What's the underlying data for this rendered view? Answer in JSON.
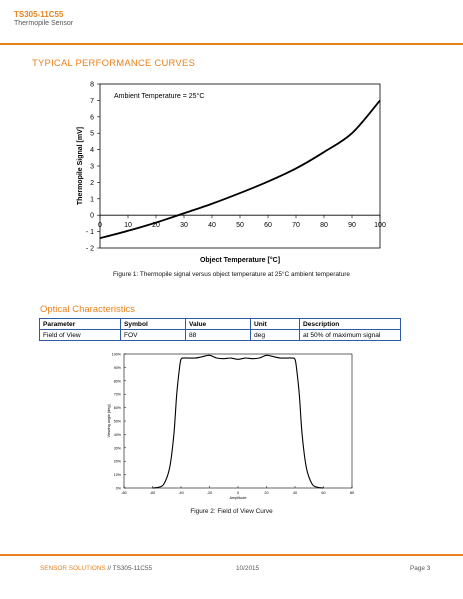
{
  "header": {
    "title": "TS305-11C55",
    "subtitle": "Thermopile Sensor"
  },
  "section1": {
    "title": "TYPICAL PERFORMANCE CURVES"
  },
  "figure1": {
    "caption": "Figure 1: Thermopile signal versus object temperature at 25°C ambient temperature",
    "annotation": "Ambient Temperature = 25°C"
  },
  "section2": {
    "title": "Optical Characteristics"
  },
  "table": {
    "headers": [
      "Parameter",
      "Symbol",
      "Value",
      "Unit",
      "Description"
    ],
    "rows": [
      [
        "Field of View",
        "FOV",
        "88",
        "deg",
        "at 50% of maximum signal"
      ]
    ]
  },
  "figure2": {
    "caption": "Figure 2: Field of View Curve"
  },
  "footer": {
    "left_brand": "SENSOR SOLUTIONS",
    "left_rest": " // TS305-11C55",
    "date": "10/2015",
    "page": "Page 3"
  },
  "chart_data": [
    {
      "type": "line",
      "title": "",
      "xlabel": "Object Temperature [°C]",
      "ylabel": "Thermopile Signal [mV]",
      "xlim": [
        0,
        100
      ],
      "ylim": [
        -2,
        8
      ],
      "xticks": [
        "0",
        "10",
        "20",
        "30",
        "40",
        "50",
        "60",
        "70",
        "80",
        "90",
        "100"
      ],
      "yticks": [
        "8",
        "7",
        "6",
        "5",
        "4",
        "3",
        "2",
        "1",
        "0",
        "- 1",
        "- 2"
      ],
      "grid": false,
      "series": [
        {
          "x": [
            0,
            10,
            20,
            25,
            30,
            40,
            50,
            60,
            70,
            80,
            90,
            100
          ],
          "y": [
            -1.4,
            -0.95,
            -0.45,
            -0.17,
            0.12,
            0.7,
            1.35,
            2.05,
            2.85,
            3.85,
            5.0,
            7.0
          ]
        }
      ]
    },
    {
      "type": "line",
      "title": "",
      "xlabel": "Amplitude",
      "ylabel": "Viewing angle [deg]",
      "xlim": [
        -80,
        80
      ],
      "ylim": [
        0,
        100
      ],
      "xticks": [
        "-80",
        "-60",
        "-40",
        "-20",
        "0",
        "20",
        "40",
        "60",
        "80"
      ],
      "yticks": [
        "100%",
        "90%",
        "80%",
        "70%",
        "60%",
        "50%",
        "40%",
        "30%",
        "20%",
        "10%",
        "0%"
      ],
      "grid": false,
      "series": [
        {
          "x": [
            -60,
            -56,
            -52,
            -48,
            -45,
            -43,
            -41,
            -40,
            -38,
            -30,
            -25,
            -20,
            -15,
            -10,
            -5,
            0,
            5,
            10,
            15,
            20,
            25,
            30,
            38,
            40,
            41,
            43,
            45,
            48,
            52,
            56,
            60
          ],
          "y": [
            0,
            0.5,
            3,
            15,
            40,
            70,
            90,
            96,
            97,
            97,
            98,
            99,
            97,
            96.5,
            97,
            96,
            97,
            96.5,
            97,
            99,
            98,
            97,
            97,
            96,
            90,
            70,
            40,
            15,
            3,
            0.5,
            0
          ]
        }
      ]
    }
  ]
}
